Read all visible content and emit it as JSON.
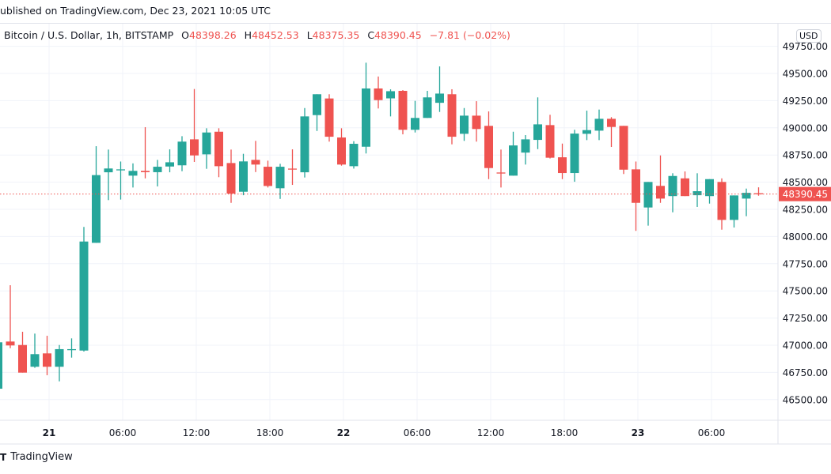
{
  "published": "ublished on TradingView.com, Dec 23, 2021 10:05 UTC",
  "legend": {
    "symbol": "Bitcoin / U.S. Dollar, 1h, BITSTAMP",
    "o_label": "O",
    "o": "48398.26",
    "h_label": "H",
    "h": "48452.53",
    "l_label": "L",
    "l": "48375.35",
    "c_label": "C",
    "c": "48390.45",
    "change": "−7.81 (−0.02%)"
  },
  "currency": "USD",
  "last_price_label": "48390.45",
  "brand": "TradingView",
  "colors": {
    "up": "#26a69a",
    "down": "#ef5350",
    "grid": "#f0f3fa"
  },
  "chart_data": {
    "type": "candlestick",
    "title": "Bitcoin / U.S. Dollar, 1h, BITSTAMP",
    "start": "Dec 20 20:00",
    "interval": "1h",
    "ylim": [
      46380,
      49780
    ],
    "last_price": 48390.45,
    "y_ticks": [
      "49750.00",
      "49500.00",
      "49250.00",
      "49000.00",
      "48750.00",
      "48500.00",
      "48250.00",
      "48000.00",
      "47750.00",
      "47500.00",
      "47250.00",
      "47000.00",
      "46750.00",
      "46500.00"
    ],
    "x_ticks": [
      {
        "label": "21",
        "index": 4,
        "bold": true
      },
      {
        "label": "06:00",
        "index": 10,
        "bold": false
      },
      {
        "label": "12:00",
        "index": 16,
        "bold": false
      },
      {
        "label": "18:00",
        "index": 22,
        "bold": false
      },
      {
        "label": "22",
        "index": 28,
        "bold": true
      },
      {
        "label": "06:00",
        "index": 34,
        "bold": false
      },
      {
        "label": "12:00",
        "index": 40,
        "bold": false
      },
      {
        "label": "18:00",
        "index": 46,
        "bold": false
      },
      {
        "label": "23",
        "index": 52,
        "bold": true
      },
      {
        "label": "06:00",
        "index": 58,
        "bold": false
      }
    ],
    "ohlc": [
      [
        46600,
        47027,
        46560,
        47027
      ],
      [
        47034,
        47552,
        46973,
        46998
      ],
      [
        47002,
        47124,
        46748,
        46748
      ],
      [
        46802,
        47107,
        46792,
        46918
      ],
      [
        46925,
        47087,
        46724,
        46802
      ],
      [
        46802,
        47002,
        46668,
        46964
      ],
      [
        46960,
        47063,
        46886,
        46964
      ],
      [
        46951,
        48088,
        46942,
        47954
      ],
      [
        47942,
        48831,
        47942,
        48565
      ],
      [
        48591,
        48800,
        48335,
        48626
      ],
      [
        48611,
        48690,
        48340,
        48618
      ],
      [
        48560,
        48673,
        48451,
        48604
      ],
      [
        48604,
        49006,
        48535,
        48592
      ],
      [
        48592,
        48705,
        48461,
        48642
      ],
      [
        48644,
        48802,
        48591,
        48683
      ],
      [
        48655,
        48923,
        48601,
        48873
      ],
      [
        48894,
        49357,
        48686,
        48746
      ],
      [
        48756,
        48996,
        48623,
        48957
      ],
      [
        48964,
        48996,
        48546,
        48647
      ],
      [
        48676,
        48800,
        48310,
        48395
      ],
      [
        48412,
        48761,
        48380,
        48691
      ],
      [
        48705,
        48880,
        48593,
        48662
      ],
      [
        48642,
        48698,
        48451,
        48465
      ],
      [
        48444,
        48669,
        48346,
        48642
      ],
      [
        48625,
        48802,
        48475,
        48620
      ],
      [
        48591,
        49182,
        48543,
        49105
      ],
      [
        49117,
        49309,
        48971,
        49309
      ],
      [
        49270,
        49309,
        48873,
        48918
      ],
      [
        48911,
        48996,
        48652,
        48662
      ],
      [
        48647,
        48877,
        48625,
        48853
      ],
      [
        48826,
        49599,
        48764,
        49362
      ],
      [
        49362,
        49472,
        49178,
        49255
      ],
      [
        49271,
        49354,
        49105,
        49337
      ],
      [
        49340,
        49347,
        48940,
        48982
      ],
      [
        48982,
        49248,
        48957,
        49091
      ],
      [
        49091,
        49340,
        49091,
        49280
      ],
      [
        49230,
        49565,
        49146,
        49315
      ],
      [
        49309,
        49355,
        48848,
        48918
      ],
      [
        48945,
        49182,
        48880,
        49112
      ],
      [
        49112,
        49245,
        48873,
        48989
      ],
      [
        49018,
        49151,
        48528,
        48630
      ],
      [
        48589,
        48800,
        48451,
        48584
      ],
      [
        48560,
        48964,
        48560,
        48838
      ],
      [
        48772,
        48933,
        48662,
        48894
      ],
      [
        48889,
        49280,
        48804,
        49032
      ],
      [
        49025,
        49120,
        48718,
        48725
      ],
      [
        48729,
        48855,
        48528,
        48584
      ],
      [
        48584,
        48982,
        48504,
        48947
      ],
      [
        48945,
        49158,
        48887,
        48979
      ],
      [
        48974,
        49168,
        48887,
        49083
      ],
      [
        49083,
        49098,
        48824,
        49008
      ],
      [
        49018,
        49018,
        48575,
        48615
      ],
      [
        48618,
        48690,
        48052,
        48310
      ],
      [
        48267,
        48502,
        48100,
        48502
      ],
      [
        48466,
        48746,
        48310,
        48349
      ],
      [
        48372,
        48582,
        48223,
        48557
      ],
      [
        48535,
        48599,
        48372,
        48372
      ],
      [
        48380,
        48582,
        48272,
        48417
      ],
      [
        48372,
        48528,
        48303,
        48528
      ],
      [
        48502,
        48535,
        48063,
        48153
      ],
      [
        48153,
        48378,
        48083,
        48378
      ],
      [
        48349,
        48441,
        48187,
        48402
      ],
      [
        48398.26,
        48452.53,
        48375.35,
        48390.45
      ]
    ]
  }
}
